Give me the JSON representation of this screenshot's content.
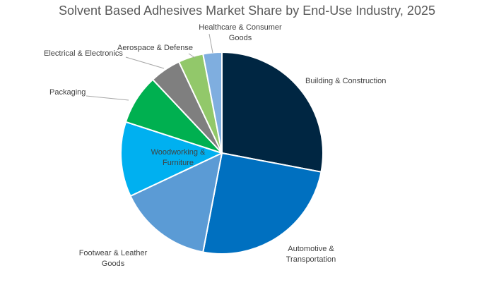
{
  "chart_data": {
    "type": "pie",
    "title": "Solvent Based Adhesives Market Share by End-Use Industry, 2025",
    "start_angle": "12 o'clock, clockwise",
    "categories": [
      "Building & Construction",
      "Automotive & Transportation",
      "Footwear & Leather Goods",
      "Woodworking & Furniture",
      "Packaging",
      "Electrical & Electronics",
      "Aerospace & Defense",
      "Healthcare & Consumer Goods"
    ],
    "values": [
      28,
      25,
      15,
      12,
      8,
      5,
      4,
      3
    ],
    "colors": [
      "#002642",
      "#0070C0",
      "#5B9BD5",
      "#00B0F0",
      "#00B050",
      "#7F7F7F",
      "#92C86A",
      "#7FAEDF"
    ],
    "label_lines": [
      [
        "Building & Construction"
      ],
      [
        "Automotive &",
        "Transportation"
      ],
      [
        "Footwear & Leather",
        "Goods"
      ],
      [
        "Woodworking &",
        "Furniture"
      ],
      [
        "Packaging"
      ],
      [
        "Electrical & Electronics"
      ],
      [
        "Aerospace & Defense"
      ],
      [
        "Healthcare & Consumer",
        "Goods"
      ]
    ],
    "legend": "none (data labels)"
  }
}
